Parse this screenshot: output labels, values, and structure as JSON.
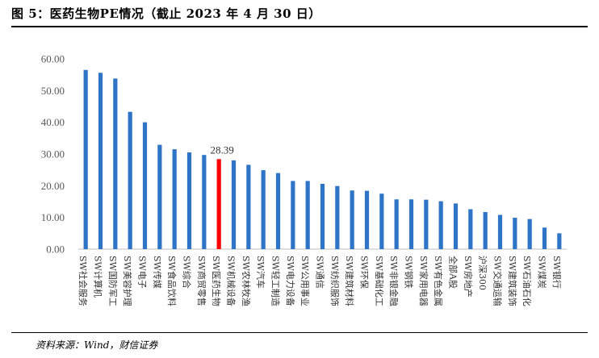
{
  "header": {
    "title": "图 5：医药生物PE情况（截止 2023 年 4 月 30 日）"
  },
  "footer": {
    "source": "资料来源：Wind，财信证券"
  },
  "chart_data": {
    "type": "bar",
    "title": "",
    "xlabel": "",
    "ylabel": "",
    "ylim": [
      0,
      60
    ],
    "yticks": [
      "0.00",
      "10.00",
      "20.00",
      "30.00",
      "40.00",
      "50.00",
      "60.00"
    ],
    "grid": false,
    "legend": "none",
    "bar_color": "#2E75C7",
    "highlight_color": "#FF0000",
    "highlight_index": 9,
    "data_labels": [
      {
        "index": 9,
        "text": "28.39"
      }
    ],
    "categories": [
      "SW社会服务",
      "SW计算机",
      "SW国防军工",
      "SW美容护理",
      "SW电子",
      "SW传媒",
      "SW食品饮料",
      "SW综合",
      "SW商贸零售",
      "SW医药生物",
      "SW机械设备",
      "SW农林牧渔",
      "SW汽车",
      "SW轻工制造",
      "SW电力设备",
      "SW公用事业",
      "SW通信",
      "SW纺织服饰",
      "SW建筑材料",
      "SW环保",
      "SW基础化工",
      "SW非银金融",
      "SW钢铁",
      "SW家用电器",
      "SW有色金属",
      "全部A股",
      "SW房地产",
      "沪深300",
      "SW交通运输",
      "SW建筑装饰",
      "SW石油石化",
      "SW煤炭",
      "SW银行"
    ],
    "values": [
      56.5,
      55.6,
      53.8,
      43.3,
      40.0,
      32.9,
      31.5,
      30.5,
      29.7,
      28.39,
      28.0,
      26.6,
      24.9,
      24.0,
      21.5,
      21.5,
      20.6,
      19.9,
      18.5,
      18.4,
      17.5,
      15.7,
      15.7,
      15.6,
      15.1,
      14.4,
      12.6,
      11.7,
      10.8,
      9.9,
      9.5,
      6.8,
      5.0
    ]
  }
}
